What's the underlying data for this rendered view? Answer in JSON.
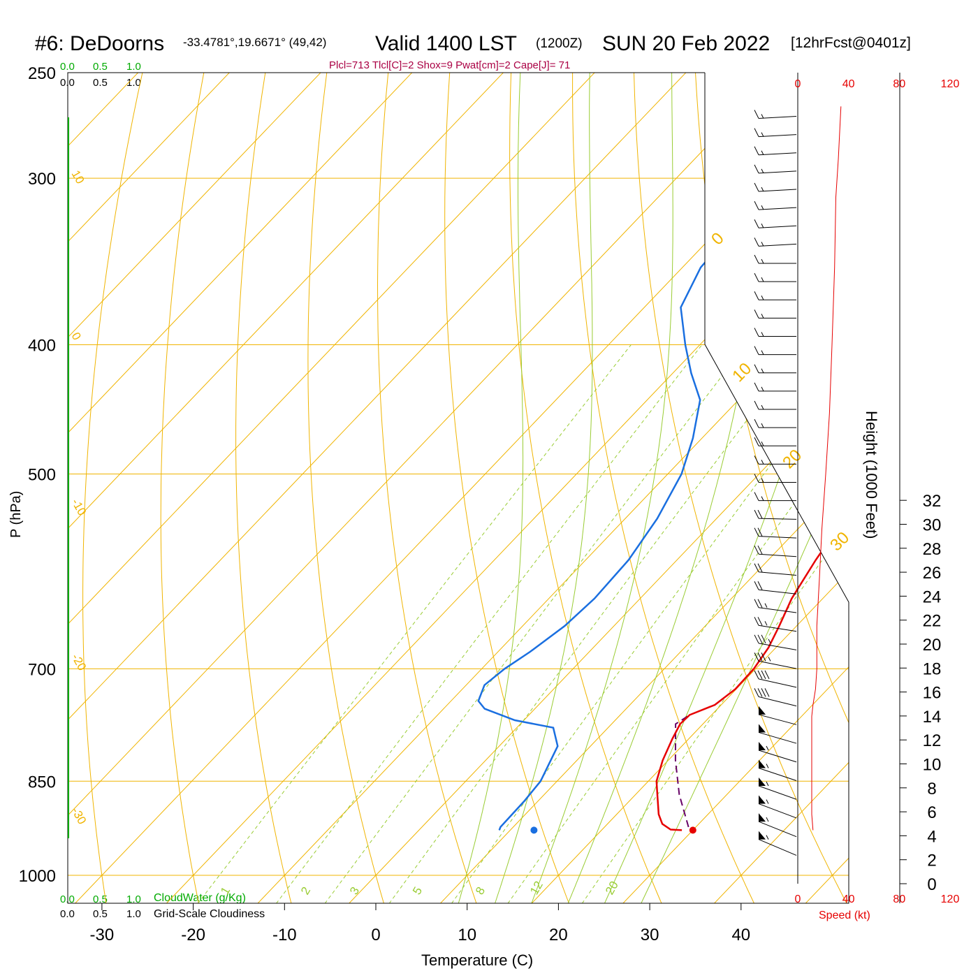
{
  "header": {
    "station": "#6: DeDoorns",
    "coords": "-33.4781°,19.6671° (49,42)",
    "valid_main": "Valid 1400 LST",
    "valid_z": "(1200Z)",
    "valid_date": "SUN 20 Feb 2022",
    "fcst": "[12hrFcst@0401z]"
  },
  "indices": "Plcl=713 Tlcl[C]=2 Shox=9 Pwat[cm]=2 Cape[J]= 71",
  "colors": {
    "isotherm": "#f0b400",
    "dry_adiabat": "#f0b400",
    "moist_adiabat": "#99cc33",
    "mixing_ratio": "#99cc33",
    "temperature": "#e60000",
    "dewpoint": "#1a6fe0",
    "parcel": "#660066",
    "green_text": "#00aa00",
    "indices_text": "#aa0044",
    "speed": "#e60000"
  },
  "cloud_scale": {
    "top_green": [
      "0.0",
      "0.5",
      "1.0"
    ],
    "top_black": [
      "0.0",
      "0.5",
      "1.0"
    ],
    "bottom_green": [
      "0.0",
      "0.5",
      "1.0"
    ],
    "bottom_black": [
      "0.0",
      "0.5",
      "1.0"
    ],
    "cloudwater_label": "CloudWater (g/Kg)",
    "cloudiness_label": "Grid-Scale Cloudiness"
  },
  "chart_data": {
    "type": "line",
    "xlabel": "Temperature (C)",
    "ylabel": "P (hPa)",
    "y2label": "Height (1000 Feet)",
    "speed_label": "Speed (kt)",
    "pressure_ticks": [
      "250",
      "300",
      "400",
      "500",
      "700",
      "850",
      "1000"
    ],
    "pressure_values": [
      250,
      300,
      400,
      500,
      700,
      850,
      1000
    ],
    "temperature_ticks": [
      "-30",
      "-20",
      "-10",
      "0",
      "10",
      "20",
      "30",
      "40"
    ],
    "temperature_values": [
      -30,
      -20,
      -10,
      0,
      10,
      20,
      30,
      40
    ],
    "height_ticks": [
      "0",
      "2",
      "4",
      "6",
      "8",
      "10",
      "12",
      "14",
      "16",
      "18",
      "20",
      "22",
      "24",
      "26",
      "28",
      "30",
      "32"
    ],
    "speed_ticks_top": [
      "0",
      "40",
      "80",
      "120"
    ],
    "speed_ticks_bottom": [
      "0",
      "40",
      "80",
      "120"
    ],
    "dry_adiabat_labels": [
      "10",
      "0",
      "-10",
      "-20",
      "-30"
    ],
    "isotherm_labels": [
      "0",
      "10",
      "20",
      "30"
    ],
    "mixing_ratio_labels": [
      "1",
      "2",
      "3",
      "5",
      "8",
      "12",
      "20"
    ],
    "temperature_profile": [
      {
        "p": 925,
        "t": 28.8
      },
      {
        "p": 924,
        "t": 27.5
      },
      {
        "p": 915,
        "t": 26.0
      },
      {
        "p": 900,
        "t": 24.6
      },
      {
        "p": 870,
        "t": 22.4
      },
      {
        "p": 850,
        "t": 20.9
      },
      {
        "p": 820,
        "t": 19.4
      },
      {
        "p": 790,
        "t": 18.2
      },
      {
        "p": 770,
        "t": 17.5
      },
      {
        "p": 758,
        "t": 17.6
      },
      {
        "p": 745,
        "t": 19.3
      },
      {
        "p": 725,
        "t": 19.9
      },
      {
        "p": 700,
        "t": 19.8
      },
      {
        "p": 675,
        "t": 19.2
      },
      {
        "p": 650,
        "t": 18.1
      },
      {
        "p": 620,
        "t": 16.6
      },
      {
        "p": 580,
        "t": 15.2
      },
      {
        "p": 540,
        "t": 14.0
      },
      {
        "p": 500,
        "t": 12.6
      },
      {
        "p": 470,
        "t": 10.8
      },
      {
        "p": 440,
        "t": 8.4
      },
      {
        "p": 410,
        "t": 6.0
      },
      {
        "p": 380,
        "t": 3.4
      },
      {
        "p": 350,
        "t": 0.0
      },
      {
        "p": 320,
        "t": -3.6
      },
      {
        "p": 300,
        "t": -6.2
      },
      {
        "p": 280,
        "t": -9.4
      },
      {
        "p": 265,
        "t": -12.0
      }
    ],
    "dewpoint_profile": [
      {
        "p": 925,
        "t": 8.8
      },
      {
        "p": 920,
        "t": 8.6
      },
      {
        "p": 880,
        "t": 8.5
      },
      {
        "p": 850,
        "t": 8.2
      },
      {
        "p": 800,
        "t": 6.4
      },
      {
        "p": 775,
        "t": 4.0
      },
      {
        "p": 765,
        "t": -1.0
      },
      {
        "p": 750,
        "t": -5.5
      },
      {
        "p": 740,
        "t": -7.0
      },
      {
        "p": 720,
        "t": -8.0
      },
      {
        "p": 700,
        "t": -7.5
      },
      {
        "p": 680,
        "t": -6.5
      },
      {
        "p": 650,
        "t": -5.4
      },
      {
        "p": 620,
        "t": -5.0
      },
      {
        "p": 580,
        "t": -5.3
      },
      {
        "p": 540,
        "t": -6.5
      },
      {
        "p": 500,
        "t": -8.5
      },
      {
        "p": 470,
        "t": -11.0
      },
      {
        "p": 440,
        "t": -14.2
      },
      {
        "p": 420,
        "t": -18.0
      },
      {
        "p": 400,
        "t": -21.6
      },
      {
        "p": 375,
        "t": -26.0
      },
      {
        "p": 350,
        "t": -28.0
      },
      {
        "p": 320,
        "t": -28.5
      },
      {
        "p": 300,
        "t": -28.6
      },
      {
        "p": 280,
        "t": -29.4
      },
      {
        "p": 265,
        "t": -30.4
      }
    ],
    "parcel_profile": [
      {
        "p": 920,
        "t": 29.2
      },
      {
        "p": 870,
        "t": 24.8
      },
      {
        "p": 820,
        "t": 20.8
      },
      {
        "p": 770,
        "t": 17.0
      },
      {
        "p": 758,
        "t": 17.6
      }
    ],
    "surface_temperature": {
      "p": 925,
      "t": 30.0
    },
    "surface_dewpoint": {
      "p": 925,
      "t": 12.6
    },
    "wind_speed_profile": [
      {
        "p": 925,
        "kt": 12
      },
      {
        "p": 900,
        "kt": 11
      },
      {
        "p": 850,
        "kt": 11
      },
      {
        "p": 800,
        "kt": 11
      },
      {
        "p": 760,
        "kt": 11
      },
      {
        "p": 745,
        "kt": 12
      },
      {
        "p": 725,
        "kt": 14
      },
      {
        "p": 700,
        "kt": 15
      },
      {
        "p": 650,
        "kt": 15
      },
      {
        "p": 600,
        "kt": 17
      },
      {
        "p": 550,
        "kt": 19
      },
      {
        "p": 500,
        "kt": 22
      },
      {
        "p": 450,
        "kt": 25
      },
      {
        "p": 400,
        "kt": 27
      },
      {
        "p": 350,
        "kt": 29
      },
      {
        "p": 310,
        "kt": 30
      },
      {
        "p": 290,
        "kt": 32
      },
      {
        "p": 265,
        "kt": 34
      }
    ],
    "wind_barb_speeds_kt": [
      15,
      15,
      15,
      15,
      15,
      15,
      15,
      15,
      15,
      15,
      15,
      15,
      15,
      15,
      15,
      15,
      15,
      15,
      15,
      15,
      15,
      15,
      20,
      20,
      20,
      20,
      20,
      25,
      25,
      35,
      35,
      40,
      40,
      50,
      50,
      55,
      55,
      55,
      55,
      55,
      55
    ]
  }
}
